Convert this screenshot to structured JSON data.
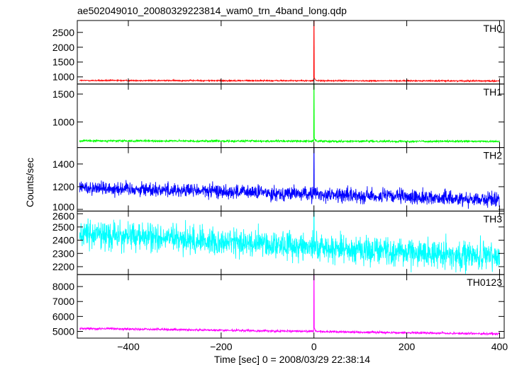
{
  "chart_data": {
    "type": "line",
    "title": "ae502049010_20080329223814_wam0_trn_4band_long.qdp",
    "xlabel": "Time [sec] 0 = 2008/03/29 22:38:14",
    "ylabel": "Counts/sec",
    "xlim": [
      -510,
      410
    ],
    "xticks": [
      -400,
      -200,
      0,
      200,
      400
    ],
    "grid": false,
    "panels": [
      {
        "name": "TH0",
        "color": "#ff0000",
        "ylim": [
          760,
          2900
        ],
        "yticks": [
          1000,
          1500,
          2000,
          2500
        ],
        "baseline_start": 880,
        "baseline_end": 865,
        "noise": 15,
        "peak": 2900
      },
      {
        "name": "TH1",
        "color": "#00ff00",
        "ylim": [
          540,
          1680
        ],
        "yticks": [
          1000,
          1500
        ],
        "baseline_start": 660,
        "baseline_end": 650,
        "noise": 13,
        "peak": 1680
      },
      {
        "name": "TH2",
        "color": "#0000ff",
        "ylim": [
          985,
          1545
        ],
        "yticks": [
          1000,
          1200,
          1400
        ],
        "baseline_start": 1195,
        "baseline_end": 1085,
        "noise": 45,
        "peak": 1545
      },
      {
        "name": "TH3",
        "color": "#00ffff",
        "ylim": [
          2140,
          2620
        ],
        "yticks": [
          2200,
          2300,
          2400,
          2500,
          2600
        ],
        "baseline_start": 2450,
        "baseline_end": 2270,
        "noise": 75,
        "peak": 2620
      },
      {
        "name": "TH0123",
        "color": "#ff00ff",
        "ylim": [
          4550,
          8800
        ],
        "yticks": [
          5000,
          6000,
          7000,
          8000
        ],
        "baseline_start": 5200,
        "baseline_end": 4830,
        "noise": 55,
        "peak": 8800
      }
    ]
  }
}
